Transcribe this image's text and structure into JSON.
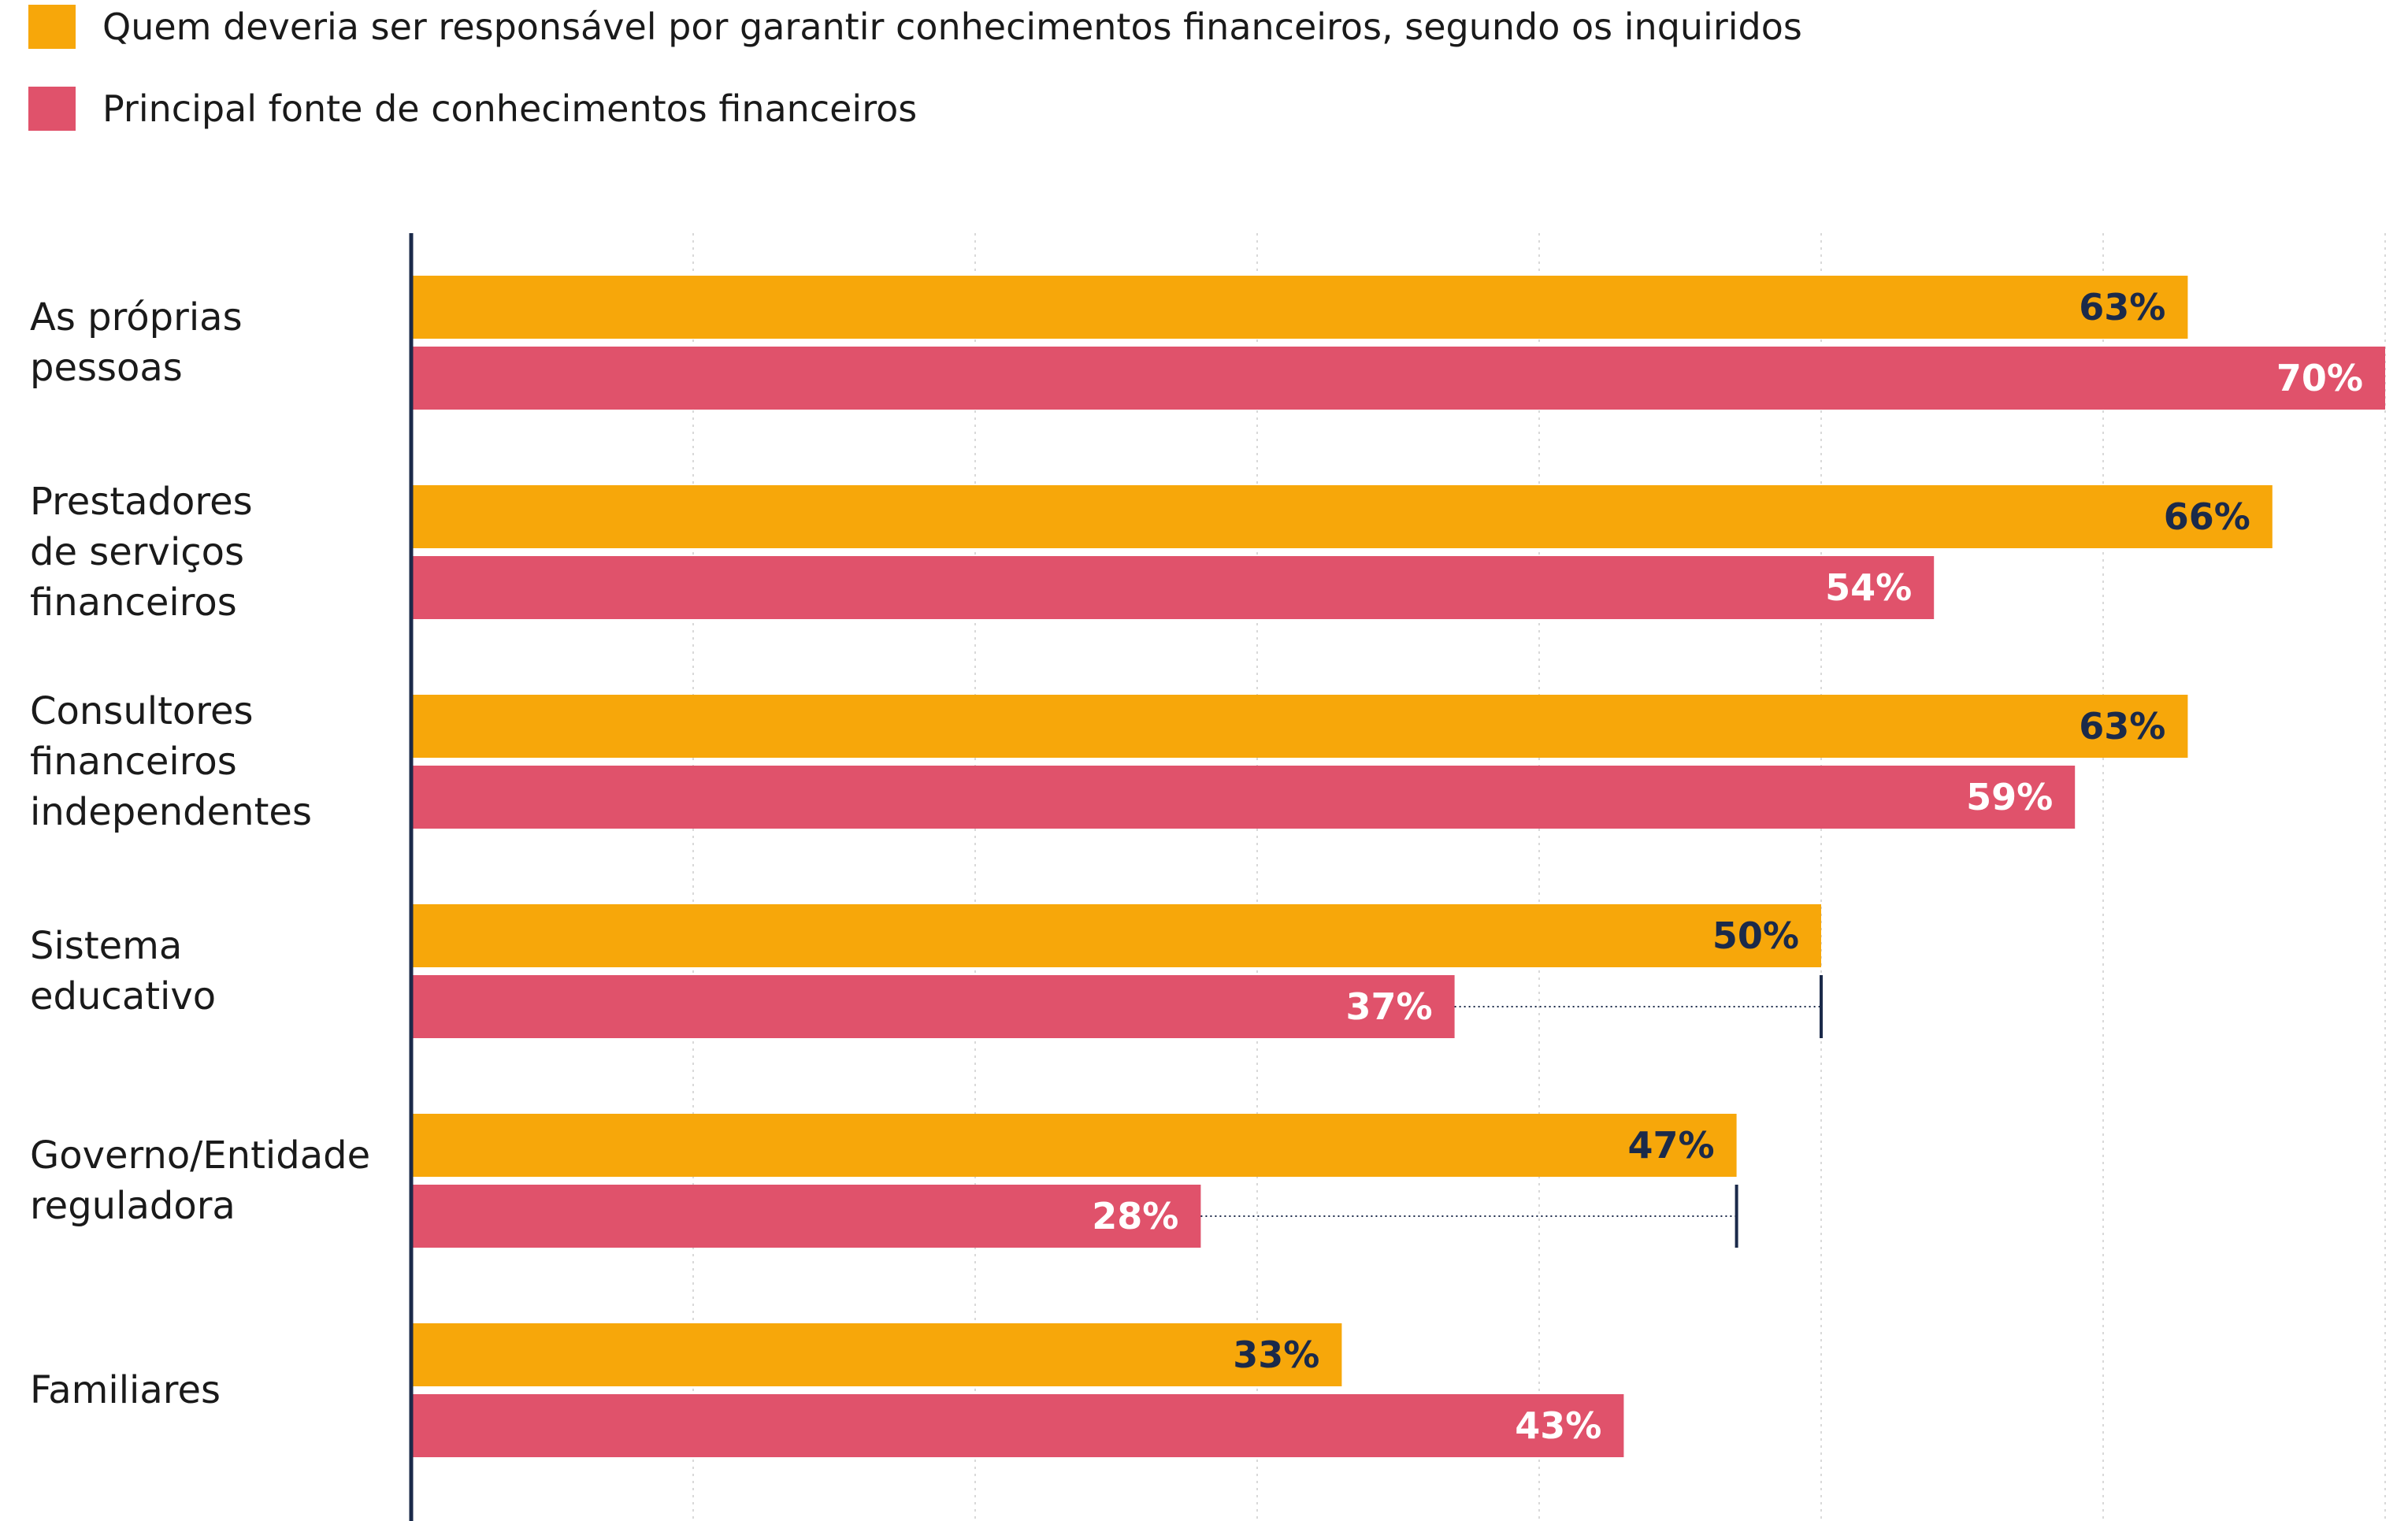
{
  "legend": {
    "items": [
      {
        "label": "Quem deveria ser responsável por garantir conhecimentos financeiros, segundo os inquiridos",
        "color": "#F7A70A"
      },
      {
        "label": "Principal fonte de conhecimentos financeiros",
        "color": "#E0526B"
      }
    ]
  },
  "chart_data": {
    "type": "bar",
    "orientation": "horizontal",
    "categories": [
      [
        "As próprias",
        "pessoas"
      ],
      [
        "Prestadores",
        "de serviços",
        "financeiros"
      ],
      [
        "Consultores",
        "financeiros",
        "independentes"
      ],
      [
        "Sistema",
        "educativo"
      ],
      [
        "Governo/Entidade",
        "reguladora"
      ],
      [
        "Familiares"
      ]
    ],
    "series": [
      {
        "name": "Quem deveria ser responsável por garantir conhecimentos financeiros, segundo os inquiridos",
        "color": "#F7A70A",
        "label_color": "#1B2A4A",
        "values": [
          63,
          66,
          63,
          50,
          47,
          33
        ]
      },
      {
        "name": "Principal fonte de conhecimentos financeiros",
        "color": "#E0526B",
        "label_color": "#FFFFFF",
        "values": [
          70,
          54,
          59,
          37,
          28,
          43
        ]
      }
    ],
    "value_suffix": "%",
    "xlim": [
      0,
      70
    ],
    "grid": true,
    "gap_markers": [
      3,
      4
    ],
    "legend_position": "top-left"
  }
}
